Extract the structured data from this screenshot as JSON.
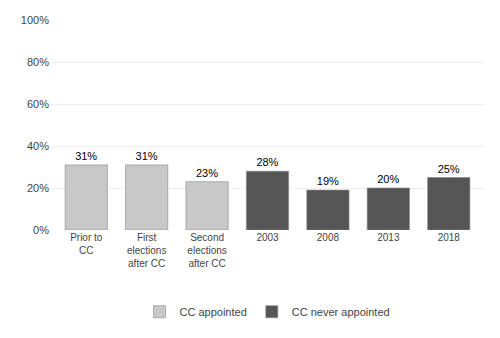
{
  "chart_data": {
    "type": "bar",
    "categories": [
      "Prior to\nCC",
      "First\nelections\nafter CC",
      "Second\nelections\nafter CC",
      "2003",
      "2008",
      "2013",
      "2018"
    ],
    "series": [
      {
        "name": "CC appointed",
        "color": "#c8c8c8",
        "values": [
          31,
          31,
          23,
          null,
          null,
          null,
          null
        ],
        "value_labels": [
          "31%",
          "31%",
          "23%",
          null,
          null,
          null,
          null
        ]
      },
      {
        "name": "CC never appointed",
        "color": "#555555",
        "values": [
          null,
          null,
          null,
          28,
          19,
          20,
          25
        ],
        "value_labels": [
          null,
          null,
          null,
          "28%",
          "19%",
          "20%",
          "25%"
        ]
      }
    ],
    "ylim": [
      0,
      100
    ],
    "yticks": [
      {
        "value": 0,
        "label": "0%"
      },
      {
        "value": 20,
        "label": "20%"
      },
      {
        "value": 40,
        "label": "40%"
      },
      {
        "value": 60,
        "label": "60%"
      },
      {
        "value": 80,
        "label": "80%"
      },
      {
        "value": 100,
        "label": "100%"
      }
    ],
    "grid": true,
    "data_labels": true,
    "legend": "bottom"
  }
}
